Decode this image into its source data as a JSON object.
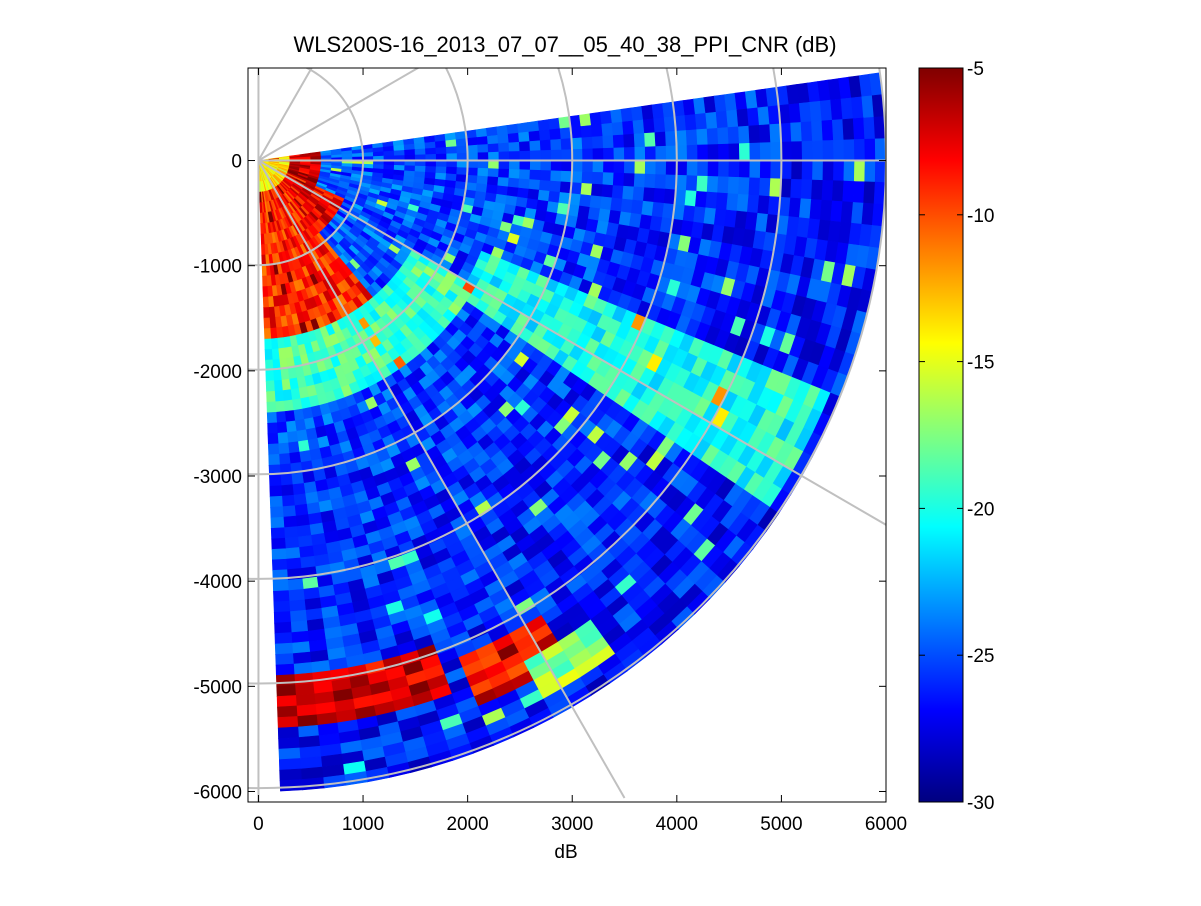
{
  "chart_data": {
    "type": "heatmap",
    "subtype": "polar-ppi-scan",
    "title": "WLS200S-16_2013_07_07__05_40_38_PPI_CNR (dB)",
    "xlabel": "dB",
    "ylabel": "",
    "xlim": [
      -100,
      6000
    ],
    "ylim": [
      -6100,
      880
    ],
    "x_ticks": [
      0,
      1000,
      2000,
      3000,
      4000,
      5000,
      6000
    ],
    "y_ticks": [
      0,
      -1000,
      -2000,
      -3000,
      -4000,
      -5000,
      -6000
    ],
    "colorbar": {
      "colormap": "jet",
      "min": -30,
      "max": -5,
      "ticks": [
        -5,
        -10,
        -15,
        -20,
        -25,
        -30
      ]
    },
    "scan": {
      "azimuth_deg_from_north_clockwise": [
        82,
        178
      ],
      "range_max": 6000,
      "range_gate": 100,
      "azimuth_step_deg": 2
    },
    "polar_grid": {
      "color": "#c0c0c0",
      "range_rings": [
        1000,
        2000,
        3000,
        4000,
        5000,
        6000
      ],
      "spokes_deg": [
        0,
        30,
        60,
        90,
        120,
        150,
        180
      ]
    },
    "bands": [
      {
        "az": [
          82,
          115
        ],
        "r": [
          150,
          600
        ],
        "cnr": -7
      },
      {
        "az": [
          115,
          140
        ],
        "r": [
          150,
          900
        ],
        "cnr": -8
      },
      {
        "az": [
          140,
          178
        ],
        "r": [
          150,
          1700
        ],
        "cnr": -9
      },
      {
        "az": [
          178,
          180
        ],
        "r": [
          0,
          2100
        ],
        "cnr": -13
      },
      {
        "az": [
          82,
          178
        ],
        "r": [
          0,
          300
        ],
        "cnr": -14
      },
      {
        "az": [
          120,
          178
        ],
        "r": [
          1700,
          2400
        ],
        "cnr": -19
      },
      {
        "az": [
          112,
          124
        ],
        "r": [
          2300,
          5900
        ],
        "cnr": -20
      },
      {
        "az": [
          148,
          158
        ],
        "r": [
          5100,
          5600
        ],
        "cnr": -8
      },
      {
        "az": [
          160,
          178
        ],
        "r": [
          4900,
          5400
        ],
        "cnr": -7
      },
      {
        "az": [
          145,
          152
        ],
        "r": [
          5400,
          5800
        ],
        "cnr": -17
      }
    ]
  }
}
